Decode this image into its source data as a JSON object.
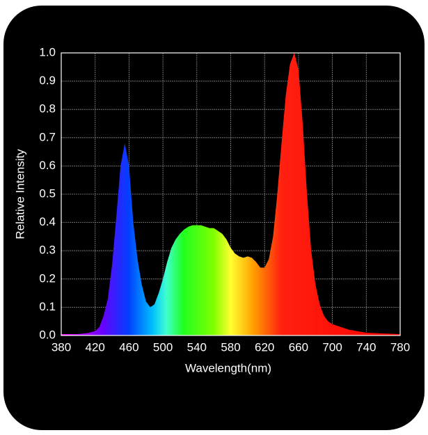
{
  "chart_data": {
    "type": "area",
    "xlabel": "Wavelength(nm)",
    "ylabel": "Relative Intensity",
    "x": [
      380,
      390,
      400,
      410,
      420,
      425,
      430,
      435,
      440,
      445,
      450,
      455,
      460,
      465,
      470,
      475,
      480,
      485,
      490,
      495,
      500,
      505,
      510,
      515,
      520,
      525,
      530,
      535,
      540,
      545,
      550,
      555,
      560,
      565,
      570,
      575,
      580,
      585,
      590,
      595,
      600,
      605,
      610,
      615,
      620,
      625,
      630,
      635,
      640,
      645,
      650,
      655,
      660,
      665,
      670,
      675,
      680,
      685,
      690,
      695,
      700,
      710,
      720,
      730,
      740,
      760,
      780
    ],
    "values": [
      0.005,
      0.005,
      0.005,
      0.008,
      0.015,
      0.03,
      0.07,
      0.13,
      0.25,
      0.42,
      0.6,
      0.68,
      0.6,
      0.4,
      0.27,
      0.18,
      0.12,
      0.1,
      0.11,
      0.15,
      0.2,
      0.26,
      0.31,
      0.34,
      0.36,
      0.375,
      0.385,
      0.39,
      0.39,
      0.39,
      0.385,
      0.38,
      0.38,
      0.37,
      0.36,
      0.34,
      0.31,
      0.29,
      0.28,
      0.275,
      0.28,
      0.275,
      0.26,
      0.24,
      0.24,
      0.27,
      0.35,
      0.5,
      0.68,
      0.85,
      0.96,
      1.0,
      0.94,
      0.75,
      0.5,
      0.3,
      0.18,
      0.11,
      0.07,
      0.05,
      0.04,
      0.03,
      0.02,
      0.015,
      0.01,
      0.007,
      0.005
    ],
    "xlim": [
      380,
      780
    ],
    "xticks": [
      380,
      420,
      460,
      500,
      540,
      580,
      620,
      660,
      700,
      740,
      780
    ],
    "ylim": [
      0,
      1
    ],
    "yticks": [
      {
        "value": 0,
        "label": "0.0"
      },
      0.1,
      0.2,
      0.3,
      0.4,
      0.5,
      0.6,
      0.7,
      0.8,
      0.9,
      {
        "value": 1,
        "label": "1.0"
      }
    ],
    "grid": true
  }
}
